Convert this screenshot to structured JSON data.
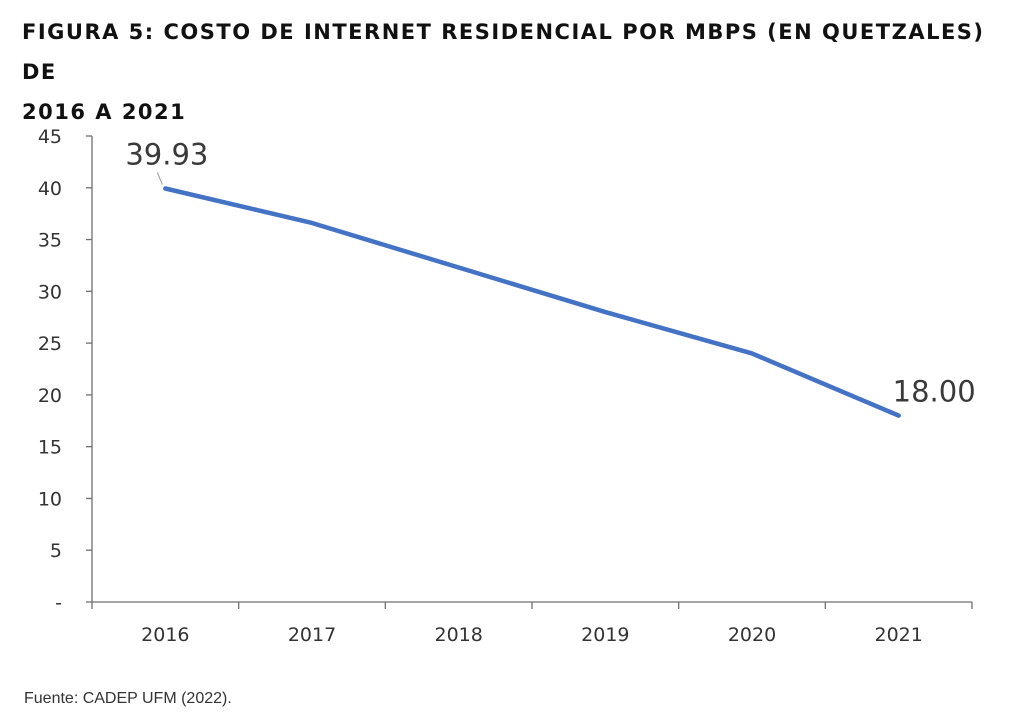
{
  "title_lines": [
    "FIGURA 5: COSTO DE INTERNET RESIDENCIAL POR MBPS (EN QUETZALES) DE",
    "2016 A 2021"
  ],
  "source": "Fuente: CADEP UFM (2022).",
  "chart_data": {
    "type": "line",
    "categories": [
      "2016",
      "2017",
      "2018",
      "2019",
      "2020",
      "2021"
    ],
    "series": [
      {
        "values": [
          39.93,
          36.6,
          32.3,
          28.0,
          24.0,
          18.0
        ],
        "color": "#4472C4"
      }
    ],
    "ylim": [
      0,
      45
    ],
    "yticks": [
      {
        "value": 0,
        "label": "-"
      },
      {
        "value": 5,
        "label": "5"
      },
      {
        "value": 10,
        "label": "10"
      },
      {
        "value": 15,
        "label": "15"
      },
      {
        "value": 20,
        "label": "20"
      },
      {
        "value": 25,
        "label": "25"
      },
      {
        "value": 30,
        "label": "30"
      },
      {
        "value": 35,
        "label": "35"
      },
      {
        "value": 40,
        "label": "40"
      },
      {
        "value": 45,
        "label": "45"
      }
    ],
    "data_labels": [
      {
        "index": 0,
        "text": "39.93"
      },
      {
        "index": 5,
        "text": "18.00"
      }
    ],
    "grid": false,
    "legend": "none"
  }
}
